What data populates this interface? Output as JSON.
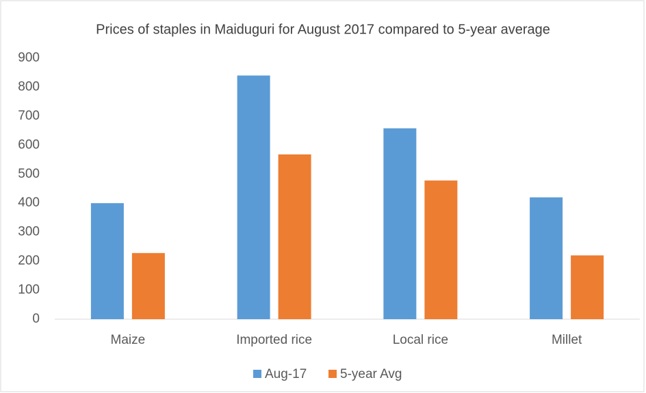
{
  "chart_data": {
    "type": "bar",
    "title": "Prices of staples in Maiduguri for August 2017 compared to 5-year average",
    "categories": [
      "Maize",
      "Imported rice",
      "Local rice",
      "Millet"
    ],
    "series": [
      {
        "name": "Aug-17",
        "color": "#5b9bd5",
        "values": [
          400,
          840,
          658,
          420
        ]
      },
      {
        "name": "5-year Avg",
        "color": "#ed7d31",
        "values": [
          228,
          568,
          478,
          220
        ]
      }
    ],
    "ylim": [
      0,
      900
    ],
    "yticks": [
      0,
      100,
      200,
      300,
      400,
      500,
      600,
      700,
      800,
      900
    ],
    "grid": false,
    "legend": "bottom"
  }
}
